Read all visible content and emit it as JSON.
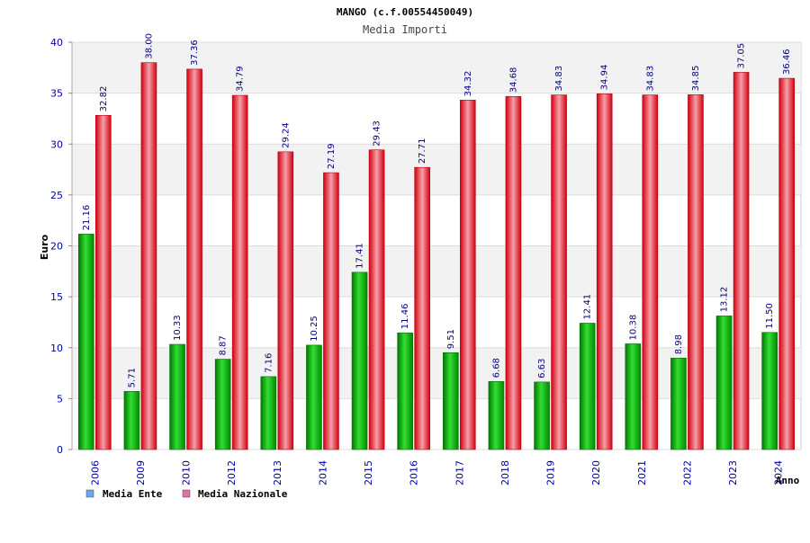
{
  "chart_data": {
    "type": "bar",
    "title": "MANGO (c.f.00554450049)",
    "subtitle": "Media Importi",
    "ylabel": "Euro",
    "xlabel": "Anno",
    "ylim": [
      0,
      40
    ],
    "yticks": [
      0,
      5,
      10,
      15,
      20,
      25,
      30,
      35,
      40
    ],
    "grid": true,
    "legend_position": "bottom-left",
    "categories": [
      "2006",
      "2009",
      "2010",
      "2012",
      "2013",
      "2014",
      "2015",
      "2016",
      "2017",
      "2018",
      "2019",
      "2020",
      "2021",
      "2022",
      "2023",
      "2024"
    ],
    "series": [
      {
        "name": "Media Ente",
        "legend_color": "#6ea6e6",
        "color": "#1ab81a",
        "values": [
          21.16,
          5.71,
          10.33,
          8.87,
          7.16,
          10.25,
          17.41,
          11.46,
          9.51,
          6.68,
          6.63,
          12.41,
          10.38,
          8.98,
          13.12,
          11.5
        ]
      },
      {
        "name": "Media Nazionale",
        "legend_color": "#e070a8",
        "color": "#e8202a",
        "values": [
          32.82,
          38.0,
          37.36,
          34.79,
          29.24,
          27.19,
          29.43,
          27.71,
          34.32,
          34.68,
          34.83,
          34.94,
          34.83,
          34.85,
          37.05,
          36.46
        ]
      }
    ]
  },
  "colors": {
    "axis_text": "#0000aa",
    "title_text": "#000000",
    "grid_band": "#f2f2f2",
    "grid_line": "#dddddd"
  }
}
